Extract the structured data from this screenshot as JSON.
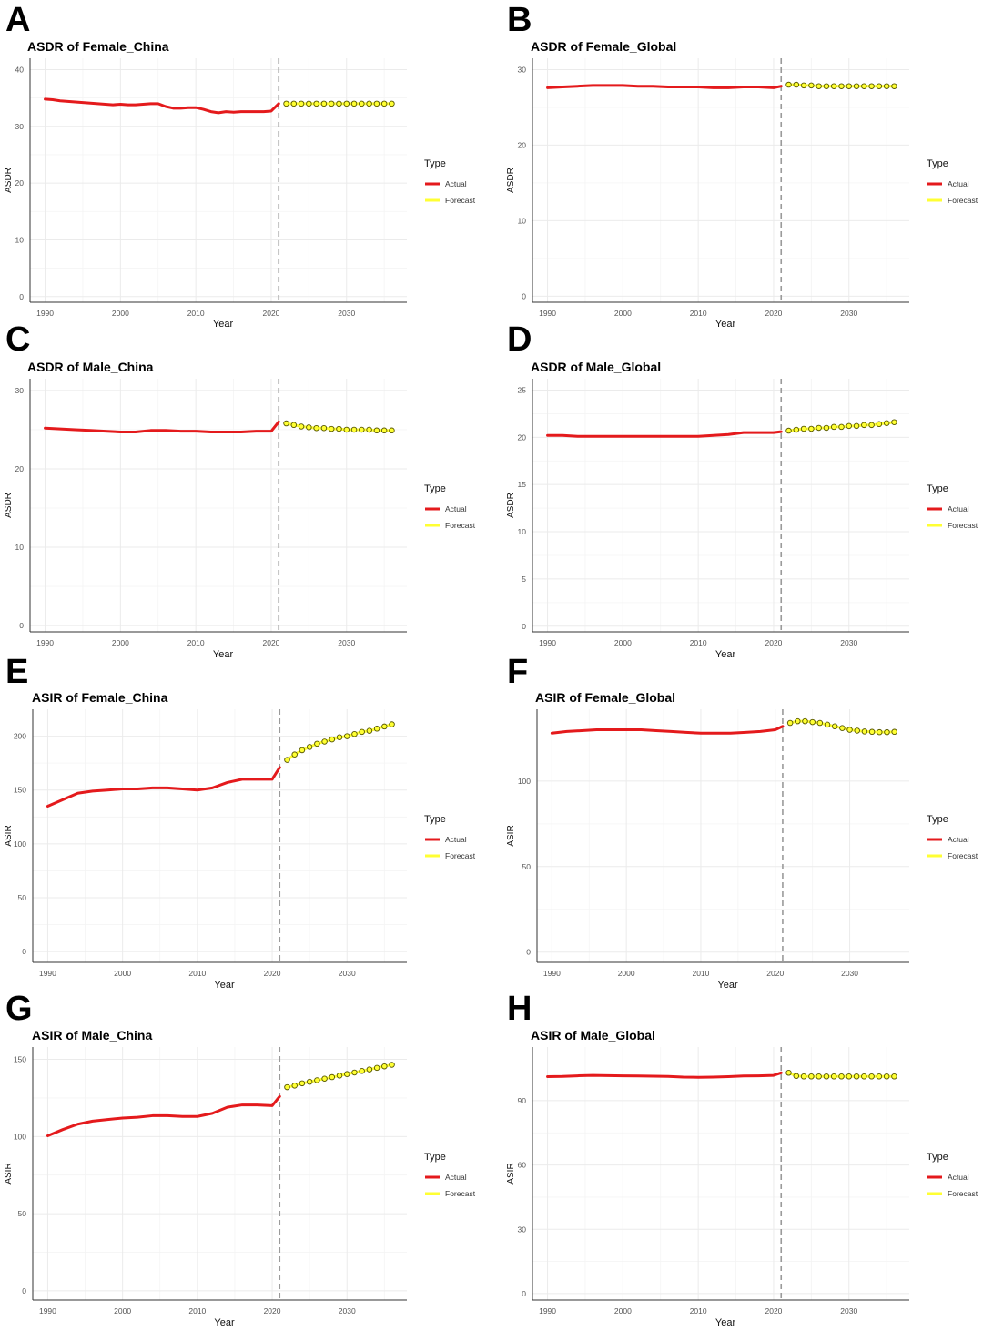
{
  "figure": {
    "legend_title": "Type",
    "legend_items": [
      "Actual",
      "Forecast"
    ],
    "colors": {
      "actual": "#e41a1c",
      "forecast": "#ffff33",
      "forecast_marker_edge": "#555500",
      "grid": "#ebebeb",
      "vline": "#9a9a9a"
    }
  },
  "chart_data": [
    {
      "panel": "A",
      "type": "line",
      "title": "ASDR of Female_China",
      "xlabel": "Year",
      "ylabel": "ASDR",
      "xlim": [
        1988,
        2038
      ],
      "xticks": [
        1990,
        2000,
        2010,
        2020,
        2030
      ],
      "ylim": [
        -1,
        42
      ],
      "yticks": [
        0,
        10,
        20,
        30,
        40
      ],
      "legend": "right",
      "grid": true,
      "vline_x": 2021,
      "series": [
        {
          "name": "Actual",
          "x": [
            1990,
            1991,
            1992,
            1993,
            1994,
            1995,
            1996,
            1997,
            1998,
            1999,
            2000,
            2001,
            2002,
            2003,
            2004,
            2005,
            2006,
            2007,
            2008,
            2009,
            2010,
            2011,
            2012,
            2013,
            2014,
            2015,
            2016,
            2017,
            2018,
            2019,
            2020,
            2021
          ],
          "y": [
            34.8,
            34.7,
            34.5,
            34.4,
            34.3,
            34.2,
            34.1,
            34.0,
            33.9,
            33.8,
            33.9,
            33.8,
            33.8,
            33.9,
            34.0,
            34.0,
            33.5,
            33.2,
            33.2,
            33.3,
            33.3,
            33.0,
            32.6,
            32.4,
            32.6,
            32.5,
            32.6,
            32.6,
            32.6,
            32.6,
            32.7,
            34.0
          ]
        },
        {
          "name": "Forecast",
          "x": [
            2022,
            2023,
            2024,
            2025,
            2026,
            2027,
            2028,
            2029,
            2030,
            2031,
            2032,
            2033,
            2034,
            2035,
            2036
          ],
          "y": [
            34.0,
            34.0,
            34.0,
            34.0,
            34.0,
            34.0,
            34.0,
            34.0,
            34.0,
            34.0,
            34.0,
            34.0,
            34.0,
            34.0,
            34.0
          ]
        }
      ]
    },
    {
      "panel": "B",
      "type": "line",
      "title": "ASDR of Female_Global",
      "xlabel": "Year",
      "ylabel": "ASDR",
      "xlim": [
        1988,
        2038
      ],
      "xticks": [
        1990,
        2000,
        2010,
        2020,
        2030
      ],
      "ylim": [
        -0.8,
        31.5
      ],
      "yticks": [
        0,
        10,
        20,
        30
      ],
      "legend": "right",
      "grid": true,
      "vline_x": 2021,
      "series": [
        {
          "name": "Actual",
          "x": [
            1990,
            1992,
            1994,
            1996,
            1998,
            2000,
            2002,
            2004,
            2006,
            2008,
            2010,
            2012,
            2014,
            2016,
            2018,
            2020,
            2021
          ],
          "y": [
            27.6,
            27.7,
            27.8,
            27.9,
            27.9,
            27.9,
            27.8,
            27.8,
            27.7,
            27.7,
            27.7,
            27.6,
            27.6,
            27.7,
            27.7,
            27.6,
            27.8
          ]
        },
        {
          "name": "Forecast",
          "x": [
            2022,
            2023,
            2024,
            2025,
            2026,
            2027,
            2028,
            2029,
            2030,
            2031,
            2032,
            2033,
            2034,
            2035,
            2036
          ],
          "y": [
            28.0,
            28.0,
            27.9,
            27.9,
            27.8,
            27.8,
            27.8,
            27.8,
            27.8,
            27.8,
            27.8,
            27.8,
            27.8,
            27.8,
            27.8
          ]
        }
      ]
    },
    {
      "panel": "C",
      "type": "line",
      "title": "ASDR of Male_China",
      "xlabel": "Year",
      "ylabel": "ASDR",
      "xlim": [
        1988,
        2038
      ],
      "xticks": [
        1990,
        2000,
        2010,
        2020,
        2030
      ],
      "ylim": [
        -0.8,
        31.5
      ],
      "yticks": [
        0,
        10,
        20,
        30
      ],
      "legend": "right",
      "grid": true,
      "vline_x": 2021,
      "series": [
        {
          "name": "Actual",
          "x": [
            1990,
            1992,
            1994,
            1996,
            1998,
            2000,
            2002,
            2004,
            2006,
            2008,
            2010,
            2012,
            2014,
            2016,
            2018,
            2020,
            2021
          ],
          "y": [
            25.2,
            25.1,
            25.0,
            24.9,
            24.8,
            24.7,
            24.7,
            24.9,
            24.9,
            24.8,
            24.8,
            24.7,
            24.7,
            24.7,
            24.8,
            24.8,
            26.0
          ]
        },
        {
          "name": "Forecast",
          "x": [
            2022,
            2023,
            2024,
            2025,
            2026,
            2027,
            2028,
            2029,
            2030,
            2031,
            2032,
            2033,
            2034,
            2035,
            2036
          ],
          "y": [
            25.8,
            25.6,
            25.4,
            25.3,
            25.2,
            25.2,
            25.1,
            25.1,
            25.0,
            25.0,
            25.0,
            25.0,
            24.9,
            24.9,
            24.9
          ]
        }
      ]
    },
    {
      "panel": "D",
      "type": "line",
      "title": "ASDR of Male_Global",
      "xlabel": "Year",
      "ylabel": "ASDR",
      "xlim": [
        1988,
        2038
      ],
      "xticks": [
        1990,
        2000,
        2010,
        2020,
        2030
      ],
      "ylim": [
        -0.6,
        26.2
      ],
      "yticks": [
        0,
        5,
        10,
        15,
        20,
        25
      ],
      "legend": "right",
      "grid": true,
      "vline_x": 2021,
      "series": [
        {
          "name": "Actual",
          "x": [
            1990,
            1992,
            1994,
            1996,
            1998,
            2000,
            2002,
            2004,
            2006,
            2008,
            2010,
            2012,
            2014,
            2016,
            2018,
            2020,
            2021
          ],
          "y": [
            20.2,
            20.2,
            20.1,
            20.1,
            20.1,
            20.1,
            20.1,
            20.1,
            20.1,
            20.1,
            20.1,
            20.2,
            20.3,
            20.5,
            20.5,
            20.5,
            20.6
          ]
        },
        {
          "name": "Forecast",
          "x": [
            2022,
            2023,
            2024,
            2025,
            2026,
            2027,
            2028,
            2029,
            2030,
            2031,
            2032,
            2033,
            2034,
            2035,
            2036
          ],
          "y": [
            20.7,
            20.8,
            20.9,
            20.9,
            21.0,
            21.0,
            21.1,
            21.1,
            21.2,
            21.2,
            21.3,
            21.3,
            21.4,
            21.5,
            21.6
          ]
        }
      ]
    },
    {
      "panel": "E",
      "type": "line",
      "title": "ASIR of Female_China",
      "xlabel": "Year",
      "ylabel": "ASIR",
      "xlim": [
        1988,
        2038
      ],
      "xticks": [
        1990,
        2000,
        2010,
        2020,
        2030
      ],
      "ylim": [
        -10,
        225
      ],
      "yticks": [
        0,
        50,
        100,
        150,
        200
      ],
      "legend": "right",
      "grid": true,
      "vline_x": 2021,
      "series": [
        {
          "name": "Actual",
          "x": [
            1990,
            1992,
            1994,
            1996,
            1998,
            2000,
            2002,
            2004,
            2006,
            2008,
            2010,
            2012,
            2014,
            2016,
            2018,
            2020,
            2021
          ],
          "y": [
            135,
            141,
            147,
            149,
            150,
            151,
            151,
            152,
            152,
            151,
            150,
            152,
            157,
            160,
            160,
            160,
            171
          ]
        },
        {
          "name": "Forecast",
          "x": [
            2022,
            2023,
            2024,
            2025,
            2026,
            2027,
            2028,
            2029,
            2030,
            2031,
            2032,
            2033,
            2034,
            2035,
            2036
          ],
          "y": [
            178,
            183,
            187,
            190,
            193,
            195,
            197,
            199,
            200,
            202,
            204,
            205,
            207,
            209,
            211
          ]
        }
      ]
    },
    {
      "panel": "F",
      "type": "line",
      "title": "ASIR of Female_Global",
      "xlabel": "Year",
      "ylabel": "ASIR",
      "xlim": [
        1988,
        2038
      ],
      "xticks": [
        1990,
        2000,
        2010,
        2020,
        2030
      ],
      "ylim": [
        -6,
        142
      ],
      "yticks": [
        0,
        50,
        100
      ],
      "legend": "right",
      "grid": true,
      "vline_x": 2021,
      "series": [
        {
          "name": "Actual",
          "x": [
            1990,
            1992,
            1994,
            1996,
            1998,
            2000,
            2002,
            2004,
            2006,
            2008,
            2010,
            2012,
            2014,
            2016,
            2018,
            2020,
            2021
          ],
          "y": [
            128,
            129,
            129.5,
            130,
            130,
            130,
            130,
            129.5,
            129,
            128.5,
            128,
            128,
            128,
            128.5,
            129,
            130,
            132
          ]
        },
        {
          "name": "Forecast",
          "x": [
            2022,
            2023,
            2024,
            2025,
            2026,
            2027,
            2028,
            2029,
            2030,
            2031,
            2032,
            2033,
            2034,
            2035,
            2036
          ],
          "y": [
            134,
            135,
            135,
            134.5,
            134,
            133,
            132,
            131,
            130,
            129.5,
            129,
            128.8,
            128.6,
            128.6,
            128.8
          ]
        }
      ]
    },
    {
      "panel": "G",
      "type": "line",
      "title": "ASIR of Male_China",
      "xlabel": "Year",
      "ylabel": "ASIR",
      "xlim": [
        1988,
        2038
      ],
      "xticks": [
        1990,
        2000,
        2010,
        2020,
        2030
      ],
      "ylim": [
        -6,
        158
      ],
      "yticks": [
        0,
        50,
        100,
        150
      ],
      "legend": "right",
      "grid": true,
      "vline_x": 2021,
      "series": [
        {
          "name": "Actual",
          "x": [
            1990,
            1992,
            1994,
            1996,
            1998,
            2000,
            2002,
            2004,
            2006,
            2008,
            2010,
            2012,
            2014,
            2016,
            2018,
            2020,
            2021
          ],
          "y": [
            100.5,
            104.5,
            108,
            110,
            111,
            112,
            112.5,
            113.5,
            113.5,
            113,
            113,
            115,
            119,
            120.5,
            120.5,
            120,
            126
          ]
        },
        {
          "name": "Forecast",
          "x": [
            2022,
            2023,
            2024,
            2025,
            2026,
            2027,
            2028,
            2029,
            2030,
            2031,
            2032,
            2033,
            2034,
            2035,
            2036
          ],
          "y": [
            132,
            133,
            134.5,
            135.5,
            136.5,
            137.5,
            138.5,
            139.5,
            140.5,
            141.5,
            142.5,
            143.5,
            144.5,
            145.5,
            146.5
          ]
        }
      ]
    },
    {
      "panel": "H",
      "type": "line",
      "title": "ASIR of Male_Global",
      "xlabel": "Year",
      "ylabel": "ASIR",
      "xlim": [
        1988,
        2038
      ],
      "xticks": [
        1990,
        2000,
        2010,
        2020,
        2030
      ],
      "ylim": [
        -3,
        115
      ],
      "yticks": [
        0,
        30,
        60,
        90
      ],
      "legend": "right",
      "grid": true,
      "vline_x": 2021,
      "series": [
        {
          "name": "Actual",
          "x": [
            1990,
            1992,
            1994,
            1996,
            1998,
            2000,
            2002,
            2004,
            2006,
            2008,
            2010,
            2012,
            2014,
            2016,
            2018,
            2020,
            2021
          ],
          "y": [
            101.2,
            101.3,
            101.6,
            101.8,
            101.7,
            101.6,
            101.5,
            101.4,
            101.3,
            101.0,
            100.9,
            101.0,
            101.2,
            101.5,
            101.6,
            101.8,
            103.0
          ]
        },
        {
          "name": "Forecast",
          "x": [
            2022,
            2023,
            2024,
            2025,
            2026,
            2027,
            2028,
            2029,
            2030,
            2031,
            2032,
            2033,
            2034,
            2035,
            2036
          ],
          "y": [
            103.0,
            101.5,
            101.3,
            101.3,
            101.3,
            101.3,
            101.3,
            101.3,
            101.3,
            101.3,
            101.3,
            101.3,
            101.3,
            101.3,
            101.3
          ]
        }
      ]
    }
  ]
}
